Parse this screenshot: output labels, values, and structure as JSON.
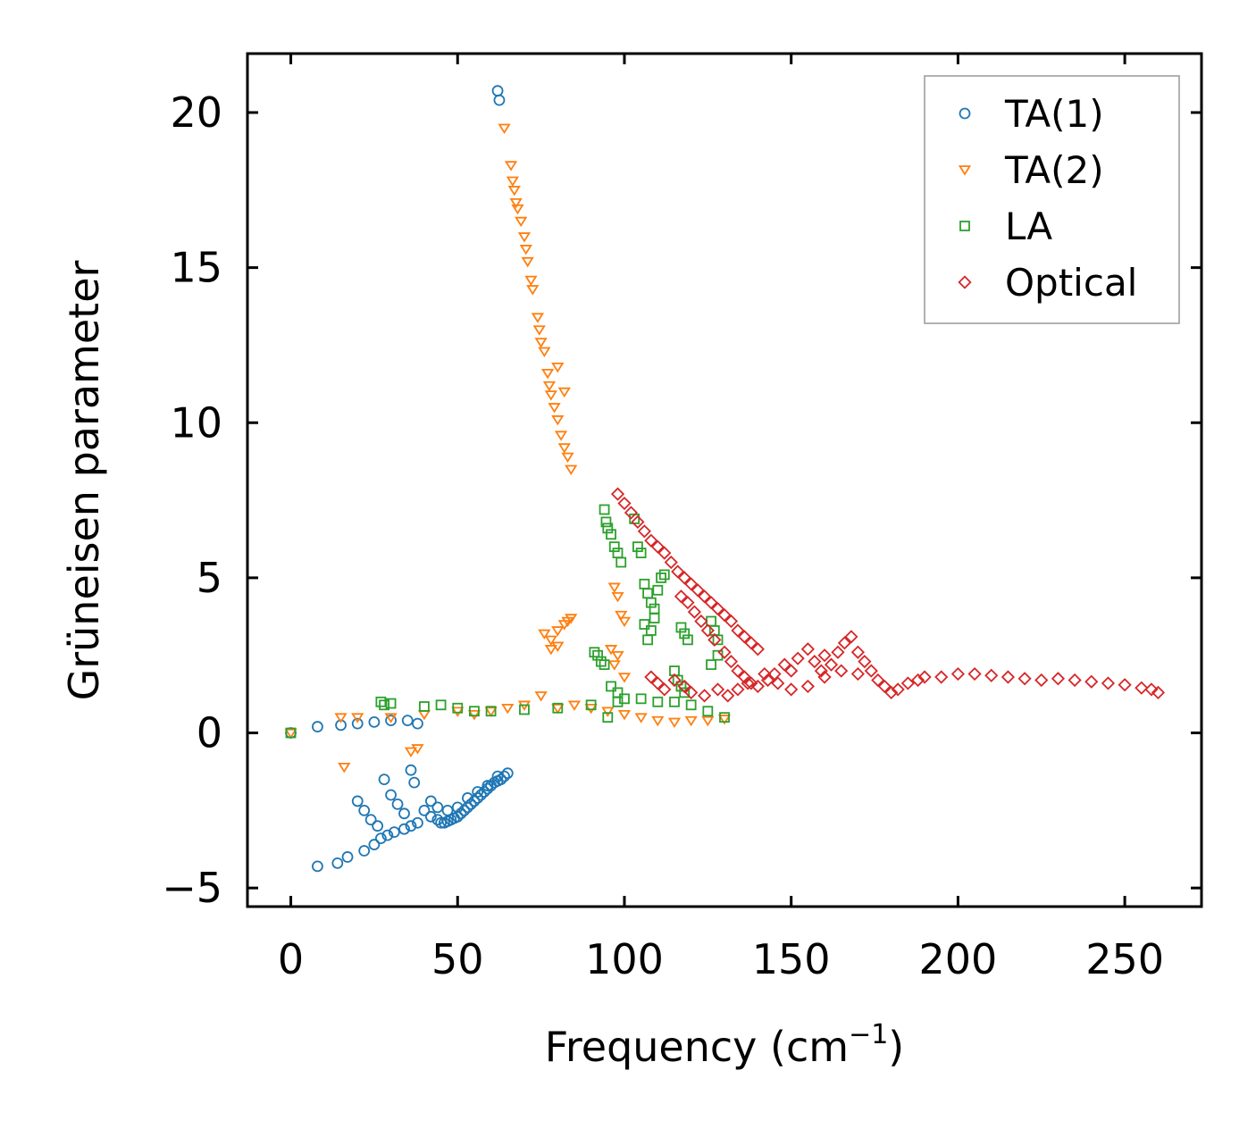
{
  "chart_data": {
    "type": "scatter",
    "title": "",
    "xlabel": "Frequency (cm",
    "xlabel_sup": "−1",
    "xlabel_suffix": ")",
    "ylabel": "Grüneisen parameter",
    "xlim": [
      -13,
      273
    ],
    "ylim": [
      -5.6,
      21.9
    ],
    "xticks": [
      0,
      50,
      100,
      150,
      200,
      250
    ],
    "yticks": [
      -5,
      0,
      5,
      10,
      15,
      20
    ],
    "xtick_labels": [
      "0",
      "50",
      "100",
      "150",
      "200",
      "250"
    ],
    "ytick_labels": [
      "−5",
      "0",
      "5",
      "10",
      "15",
      "20"
    ],
    "legend_position": "top-right",
    "grid": false,
    "series": [
      {
        "name": "TA(1)",
        "marker": "circle",
        "color": "#1f77b4",
        "points": [
          [
            0,
            0
          ],
          [
            8,
            0.2
          ],
          [
            15,
            0.25
          ],
          [
            20,
            0.3
          ],
          [
            25,
            0.35
          ],
          [
            30,
            0.4
          ],
          [
            35,
            0.4
          ],
          [
            38,
            0.3
          ],
          [
            8,
            -4.3
          ],
          [
            14,
            -4.2
          ],
          [
            17,
            -4.0
          ],
          [
            22,
            -3.8
          ],
          [
            25,
            -3.6
          ],
          [
            27,
            -3.4
          ],
          [
            29,
            -3.3
          ],
          [
            31,
            -3.2
          ],
          [
            34,
            -3.1
          ],
          [
            36,
            -3.0
          ],
          [
            38,
            -2.9
          ],
          [
            20,
            -2.2
          ],
          [
            22,
            -2.5
          ],
          [
            24,
            -2.8
          ],
          [
            26,
            -3.0
          ],
          [
            28,
            -1.5
          ],
          [
            30,
            -2.0
          ],
          [
            32,
            -2.3
          ],
          [
            34,
            -2.6
          ],
          [
            36,
            -1.2
          ],
          [
            37,
            -1.6
          ],
          [
            40,
            -2.5
          ],
          [
            42,
            -2.7
          ],
          [
            44,
            -2.8
          ],
          [
            45,
            -2.9
          ],
          [
            46,
            -2.9
          ],
          [
            47,
            -2.85
          ],
          [
            48,
            -2.8
          ],
          [
            49,
            -2.75
          ],
          [
            50,
            -2.7
          ],
          [
            51,
            -2.6
          ],
          [
            52,
            -2.5
          ],
          [
            53,
            -2.4
          ],
          [
            54,
            -2.3
          ],
          [
            55,
            -2.2
          ],
          [
            56,
            -2.1
          ],
          [
            57,
            -2.0
          ],
          [
            58,
            -1.9
          ],
          [
            59,
            -1.8
          ],
          [
            60,
            -1.7
          ],
          [
            61,
            -1.6
          ],
          [
            62,
            -1.55
          ],
          [
            63,
            -1.5
          ],
          [
            64,
            -1.4
          ],
          [
            65,
            -1.3
          ],
          [
            42,
            -2.2
          ],
          [
            44,
            -2.4
          ],
          [
            47,
            -2.5
          ],
          [
            50,
            -2.4
          ],
          [
            53,
            -2.1
          ],
          [
            56,
            -1.9
          ],
          [
            59,
            -1.7
          ],
          [
            62,
            -1.4
          ],
          [
            62,
            20.7
          ],
          [
            62.5,
            20.4
          ]
        ]
      },
      {
        "name": "TA(2)",
        "marker": "triangle-down",
        "color": "#ff7f0e",
        "points": [
          [
            0,
            0
          ],
          [
            15,
            0.5
          ],
          [
            20,
            0.5
          ],
          [
            30,
            0.5
          ],
          [
            40,
            0.6
          ],
          [
            50,
            0.7
          ],
          [
            55,
            0.6
          ],
          [
            60,
            0.7
          ],
          [
            65,
            0.8
          ],
          [
            70,
            0.9
          ],
          [
            75,
            1.2
          ],
          [
            80,
            0.8
          ],
          [
            85,
            0.9
          ],
          [
            90,
            0.8
          ],
          [
            95,
            0.7
          ],
          [
            100,
            0.6
          ],
          [
            105,
            0.5
          ],
          [
            110,
            0.4
          ],
          [
            115,
            0.35
          ],
          [
            120,
            0.4
          ],
          [
            125,
            0.4
          ],
          [
            130,
            0.45
          ],
          [
            16,
            -1.1
          ],
          [
            36,
            -0.6
          ],
          [
            38,
            -0.5
          ],
          [
            64,
            19.5
          ],
          [
            66,
            18.3
          ],
          [
            66.5,
            17.8
          ],
          [
            67,
            17.5
          ],
          [
            67.5,
            17.1
          ],
          [
            68,
            16.9
          ],
          [
            69,
            16.5
          ],
          [
            70,
            16.0
          ],
          [
            70.5,
            15.6
          ],
          [
            71,
            15.2
          ],
          [
            72,
            14.6
          ],
          [
            72.5,
            14.3
          ],
          [
            74,
            13.4
          ],
          [
            74.5,
            13.0
          ],
          [
            75,
            12.6
          ],
          [
            76,
            12.3
          ],
          [
            77,
            11.6
          ],
          [
            77.5,
            11.2
          ],
          [
            78,
            10.9
          ],
          [
            79,
            10.5
          ],
          [
            80,
            10.1
          ],
          [
            81,
            9.6
          ],
          [
            82,
            9.2
          ],
          [
            83,
            8.9
          ],
          [
            84,
            8.5
          ],
          [
            80,
            11.8
          ],
          [
            82,
            11.0
          ],
          [
            76,
            3.2
          ],
          [
            78,
            3.0
          ],
          [
            80,
            3.3
          ],
          [
            82,
            3.5
          ],
          [
            83,
            3.6
          ],
          [
            84,
            3.7
          ],
          [
            78,
            2.7
          ],
          [
            80,
            2.8
          ],
          [
            97,
            4.7
          ],
          [
            98,
            4.4
          ],
          [
            99,
            3.8
          ],
          [
            100,
            3.6
          ],
          [
            96,
            2.7
          ],
          [
            97,
            2.2
          ],
          [
            98,
            2.5
          ],
          [
            100,
            1.8
          ]
        ]
      },
      {
        "name": "LA",
        "marker": "square",
        "color": "#2ca02c",
        "points": [
          [
            0,
            0
          ],
          [
            27,
            1.0
          ],
          [
            28,
            0.9
          ],
          [
            30,
            0.95
          ],
          [
            40,
            0.85
          ],
          [
            45,
            0.9
          ],
          [
            50,
            0.8
          ],
          [
            55,
            0.7
          ],
          [
            60,
            0.7
          ],
          [
            70,
            0.75
          ],
          [
            80,
            0.8
          ],
          [
            90,
            0.9
          ],
          [
            95,
            0.5
          ],
          [
            98,
            1.0
          ],
          [
            100,
            1.1
          ],
          [
            105,
            1.1
          ],
          [
            110,
            1.0
          ],
          [
            115,
            1.0
          ],
          [
            120,
            0.9
          ],
          [
            125,
            0.7
          ],
          [
            130,
            0.5
          ],
          [
            94,
            7.2
          ],
          [
            94.5,
            6.8
          ],
          [
            95,
            6.6
          ],
          [
            96,
            6.4
          ],
          [
            97,
            6.0
          ],
          [
            98,
            5.8
          ],
          [
            99,
            5.5
          ],
          [
            103,
            6.9
          ],
          [
            104,
            6.0
          ],
          [
            105,
            5.8
          ],
          [
            106,
            4.8
          ],
          [
            107,
            4.5
          ],
          [
            108,
            4.2
          ],
          [
            109,
            4.0
          ],
          [
            110,
            4.6
          ],
          [
            111,
            5.0
          ],
          [
            112,
            5.1
          ],
          [
            106,
            3.5
          ],
          [
            107,
            3.0
          ],
          [
            108,
            3.3
          ],
          [
            109,
            3.7
          ],
          [
            117,
            3.4
          ],
          [
            118,
            3.2
          ],
          [
            119,
            3.0
          ],
          [
            126,
            3.6
          ],
          [
            127,
            3.3
          ],
          [
            128,
            3.0
          ],
          [
            128,
            2.5
          ],
          [
            126,
            2.2
          ],
          [
            91,
            2.6
          ],
          [
            92,
            2.5
          ],
          [
            93,
            2.3
          ],
          [
            94,
            2.2
          ],
          [
            96,
            1.5
          ],
          [
            98,
            1.3
          ],
          [
            115,
            2.0
          ],
          [
            116,
            1.7
          ],
          [
            117,
            1.5
          ],
          [
            118,
            1.3
          ]
        ]
      },
      {
        "name": "Optical",
        "marker": "diamond",
        "color": "#d62728",
        "points": [
          [
            98,
            7.7
          ],
          [
            100,
            7.4
          ],
          [
            102,
            7.1
          ],
          [
            104,
            6.8
          ],
          [
            106,
            6.5
          ],
          [
            108,
            6.2
          ],
          [
            110,
            6.0
          ],
          [
            112,
            5.8
          ],
          [
            114,
            5.5
          ],
          [
            116,
            5.2
          ],
          [
            118,
            5.0
          ],
          [
            120,
            4.8
          ],
          [
            122,
            4.6
          ],
          [
            124,
            4.4
          ],
          [
            126,
            4.2
          ],
          [
            128,
            4.0
          ],
          [
            130,
            3.8
          ],
          [
            132,
            3.6
          ],
          [
            134,
            3.3
          ],
          [
            136,
            3.1
          ],
          [
            138,
            2.9
          ],
          [
            140,
            2.7
          ],
          [
            117,
            4.4
          ],
          [
            119,
            4.2
          ],
          [
            121,
            3.9
          ],
          [
            123,
            3.6
          ],
          [
            125,
            3.3
          ],
          [
            127,
            3.0
          ],
          [
            130,
            2.6
          ],
          [
            132,
            2.3
          ],
          [
            134,
            2.0
          ],
          [
            136,
            1.8
          ],
          [
            138,
            1.6
          ],
          [
            140,
            1.5
          ],
          [
            143,
            1.7
          ],
          [
            145,
            1.9
          ],
          [
            148,
            2.2
          ],
          [
            150,
            2.0
          ],
          [
            152,
            2.4
          ],
          [
            155,
            2.7
          ],
          [
            157,
            2.3
          ],
          [
            159,
            2.0
          ],
          [
            160,
            1.8
          ],
          [
            162,
            2.2
          ],
          [
            164,
            2.6
          ],
          [
            166,
            2.9
          ],
          [
            168,
            3.1
          ],
          [
            170,
            2.6
          ],
          [
            172,
            2.3
          ],
          [
            174,
            2.0
          ],
          [
            176,
            1.7
          ],
          [
            178,
            1.5
          ],
          [
            180,
            1.3
          ],
          [
            182,
            1.4
          ],
          [
            185,
            1.6
          ],
          [
            188,
            1.7
          ],
          [
            190,
            1.8
          ],
          [
            195,
            1.8
          ],
          [
            200,
            1.9
          ],
          [
            205,
            1.9
          ],
          [
            210,
            1.85
          ],
          [
            215,
            1.8
          ],
          [
            220,
            1.75
          ],
          [
            225,
            1.7
          ],
          [
            230,
            1.75
          ],
          [
            235,
            1.7
          ],
          [
            240,
            1.65
          ],
          [
            245,
            1.6
          ],
          [
            250,
            1.55
          ],
          [
            255,
            1.45
          ],
          [
            258,
            1.4
          ],
          [
            260,
            1.3
          ],
          [
            108,
            1.8
          ],
          [
            110,
            1.6
          ],
          [
            112,
            1.4
          ],
          [
            115,
            1.7
          ],
          [
            118,
            1.5
          ],
          [
            120,
            1.3
          ],
          [
            124,
            1.2
          ],
          [
            128,
            1.4
          ],
          [
            131,
            1.2
          ],
          [
            134,
            1.4
          ],
          [
            137,
            1.6
          ],
          [
            142,
            1.9
          ],
          [
            146,
            1.6
          ],
          [
            150,
            1.4
          ],
          [
            155,
            1.5
          ],
          [
            160,
            2.5
          ],
          [
            165,
            2.0
          ],
          [
            170,
            1.9
          ]
        ]
      }
    ]
  }
}
